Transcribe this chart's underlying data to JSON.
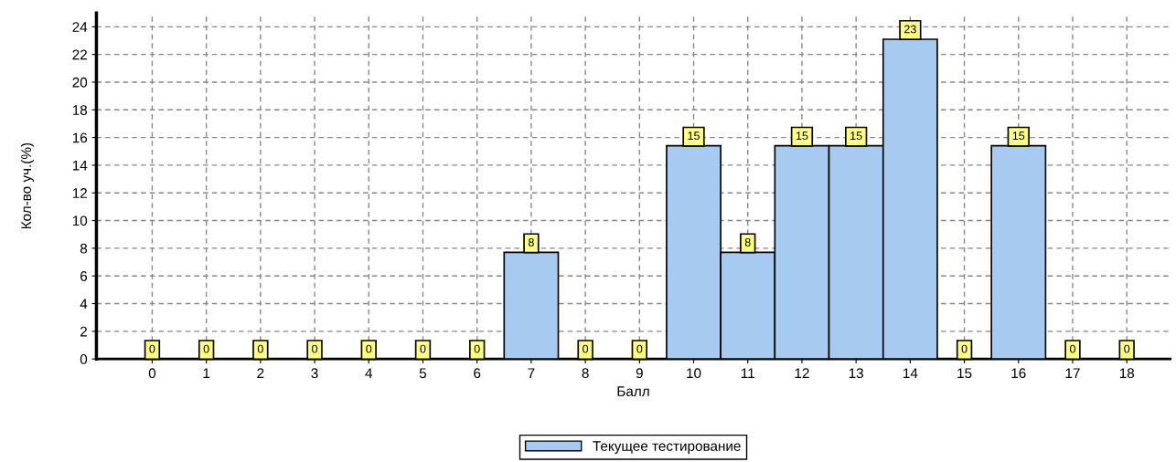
{
  "chart_data": {
    "type": "bar",
    "xlabel": "Балл",
    "ylabel": "Кол-во уч.(%)",
    "categories": [
      "0",
      "1",
      "2",
      "3",
      "4",
      "5",
      "6",
      "7",
      "8",
      "9",
      "10",
      "11",
      "12",
      "13",
      "14",
      "15",
      "16",
      "17",
      "18"
    ],
    "series": [
      {
        "name": "Текущее тестирование",
        "color": "#a6caf0",
        "values": [
          0,
          0,
          0,
          0,
          0,
          0,
          0,
          7.7,
          0,
          0,
          15.4,
          7.7,
          15.4,
          15.4,
          23.1,
          0,
          15.4,
          0,
          0
        ],
        "value_labels": [
          "0",
          "0",
          "0",
          "0",
          "0",
          "0",
          "0",
          "8",
          "0",
          "0",
          "15",
          "8",
          "15",
          "15",
          "23",
          "0",
          "15",
          "0",
          "0"
        ]
      }
    ],
    "ylim": [
      0,
      25
    ],
    "yticks": [
      0,
      2,
      4,
      6,
      8,
      10,
      12,
      14,
      16,
      18,
      20,
      22,
      24
    ],
    "grid": true,
    "legend": "bottom"
  }
}
